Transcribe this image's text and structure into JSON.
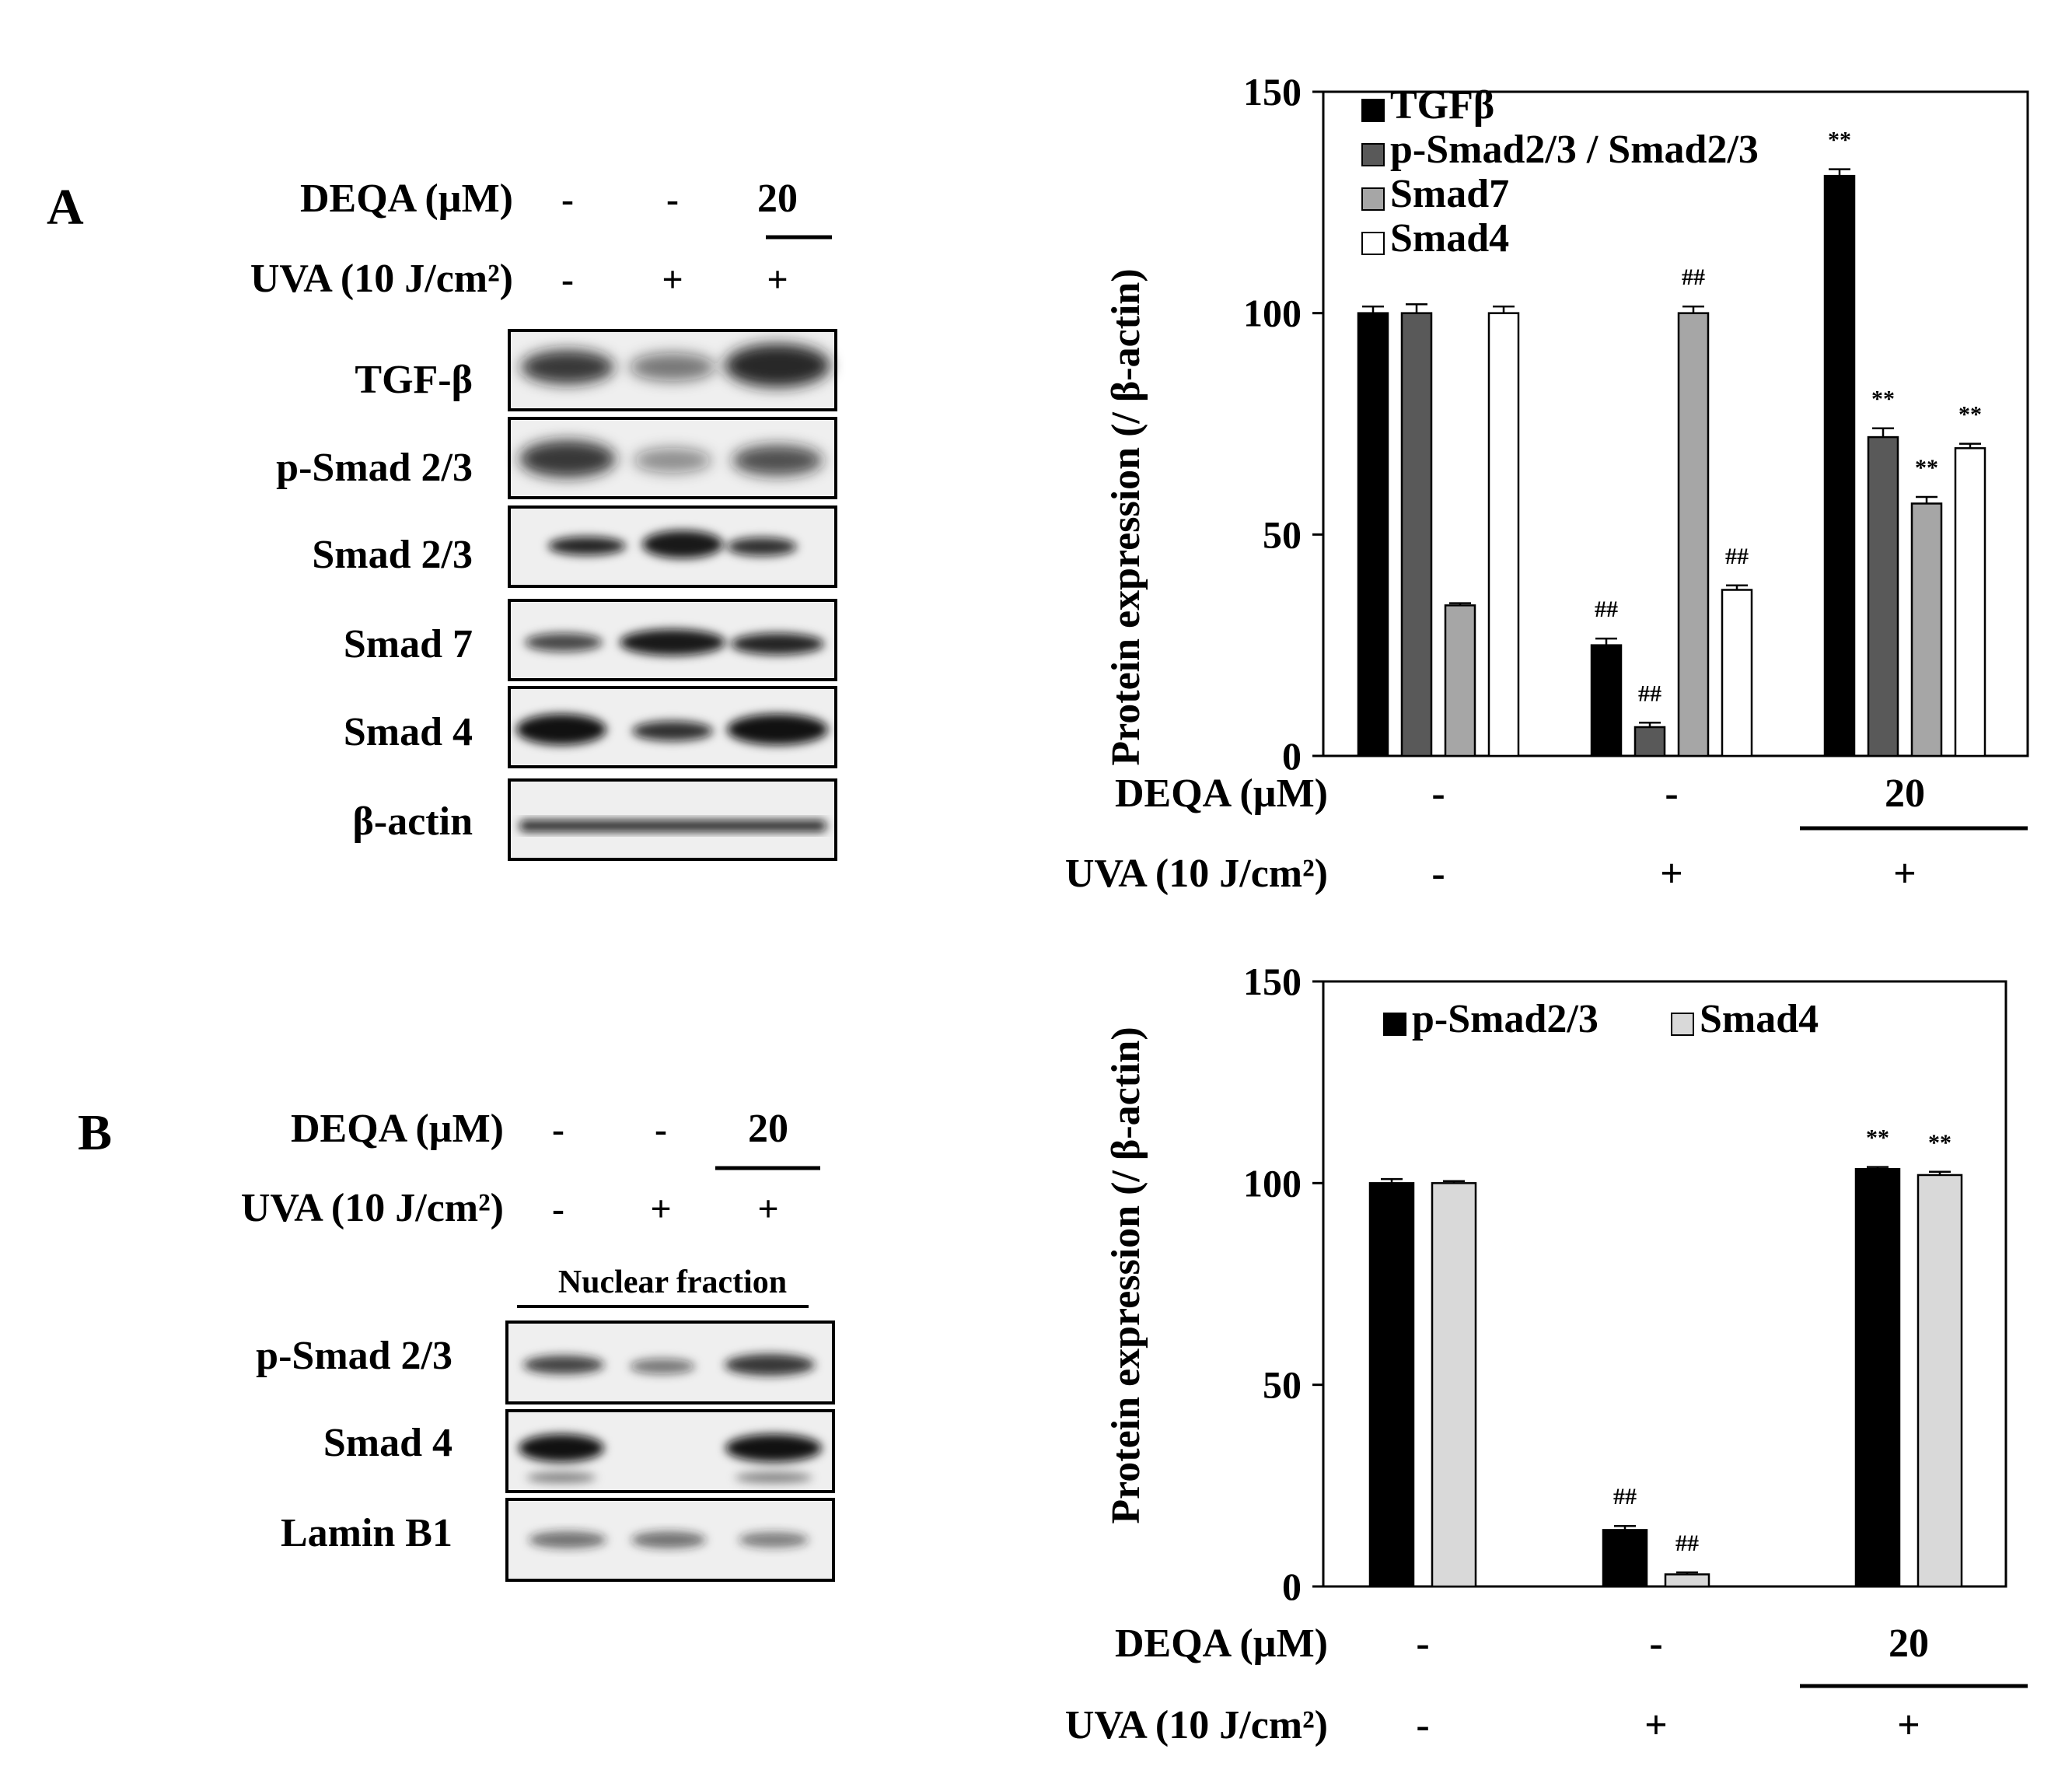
{
  "panels": {
    "a": {
      "letter": "A",
      "deqa_label": "DEQA  (µM)",
      "uva_label": "UVA (10 J/cm²)",
      "deqa_values": [
        "-",
        "-",
        "20"
      ],
      "uva_values": [
        "-",
        "+",
        "+"
      ],
      "blots": [
        "TGF-β",
        "p-Smad 2/3",
        "Smad 2/3",
        "Smad 7",
        "Smad 4",
        "β-actin"
      ]
    },
    "b": {
      "letter": "B",
      "deqa_label": "DEQA  (µM)",
      "uva_label": "UVA (10 J/cm²)",
      "deqa_values": [
        "-",
        "-",
        "20"
      ],
      "uva_values": [
        "-",
        "+",
        "+"
      ],
      "fraction_label": "Nuclear fraction",
      "blots": [
        "p-Smad 2/3",
        "Smad 4",
        "Lamin B1"
      ]
    }
  },
  "chart_data": [
    {
      "type": "bar",
      "ylabel": "Protein expression (/ β-actin)",
      "ylim": [
        0,
        150
      ],
      "yticks": [
        0,
        50,
        100,
        150
      ],
      "grid": false,
      "legend_position": "top-left",
      "categories": [
        "1",
        "2",
        "3"
      ],
      "x_row_labels": {
        "deqa_label": "DEQA  (µM)",
        "uva_label": "UVA (10 J/cm²)",
        "deqa_values": [
          "-",
          "-",
          "20"
        ],
        "uva_values": [
          "-",
          "+",
          "+"
        ]
      },
      "series": [
        {
          "name": "TGFβ",
          "color": "#000000",
          "values": [
            100,
            25,
            131
          ],
          "errors": [
            1.5,
            1.5,
            1.5
          ],
          "annotations": [
            "",
            "##",
            "**"
          ]
        },
        {
          "name": "p-Smad2/3 / Smad2/3",
          "color": "#595959",
          "values": [
            100,
            6.5,
            72
          ],
          "errors": [
            2,
            1,
            2
          ],
          "annotations": [
            "",
            "##",
            "**"
          ]
        },
        {
          "name": "Smad7",
          "color": "#a6a6a6",
          "values": [
            34,
            100,
            57
          ],
          "errors": [
            0.5,
            1.5,
            1.5
          ],
          "annotations": [
            "",
            "##",
            "**"
          ]
        },
        {
          "name": "Smad4",
          "color": "#ffffff",
          "values": [
            100,
            37.5,
            69.5
          ],
          "errors": [
            1.5,
            1,
            1
          ],
          "annotations": [
            "",
            "##",
            "**"
          ]
        }
      ]
    },
    {
      "type": "bar",
      "ylabel": "Protein expression (/ β-actin)",
      "ylim": [
        0,
        150
      ],
      "yticks": [
        0,
        50,
        100,
        150
      ],
      "grid": false,
      "legend_position": "top",
      "categories": [
        "1",
        "2",
        "3"
      ],
      "x_row_labels": {
        "deqa_label": "DEQA  (µM)",
        "uva_label": "UVA (10 J/cm²)",
        "deqa_values": [
          "-",
          "-",
          "20"
        ],
        "uva_values": [
          "-",
          "+",
          "+"
        ]
      },
      "series": [
        {
          "name": "p-Smad2/3",
          "color": "#000000",
          "values": [
            100,
            14,
            103.5
          ],
          "errors": [
            1,
            1,
            0.5
          ],
          "annotations": [
            "",
            "##",
            "**"
          ]
        },
        {
          "name": "Smad4",
          "color": "#d9d9d9",
          "values": [
            100,
            3,
            102
          ],
          "errors": [
            0.5,
            0.5,
            0.8
          ],
          "annotations": [
            "",
            "##",
            "**"
          ]
        }
      ]
    }
  ]
}
